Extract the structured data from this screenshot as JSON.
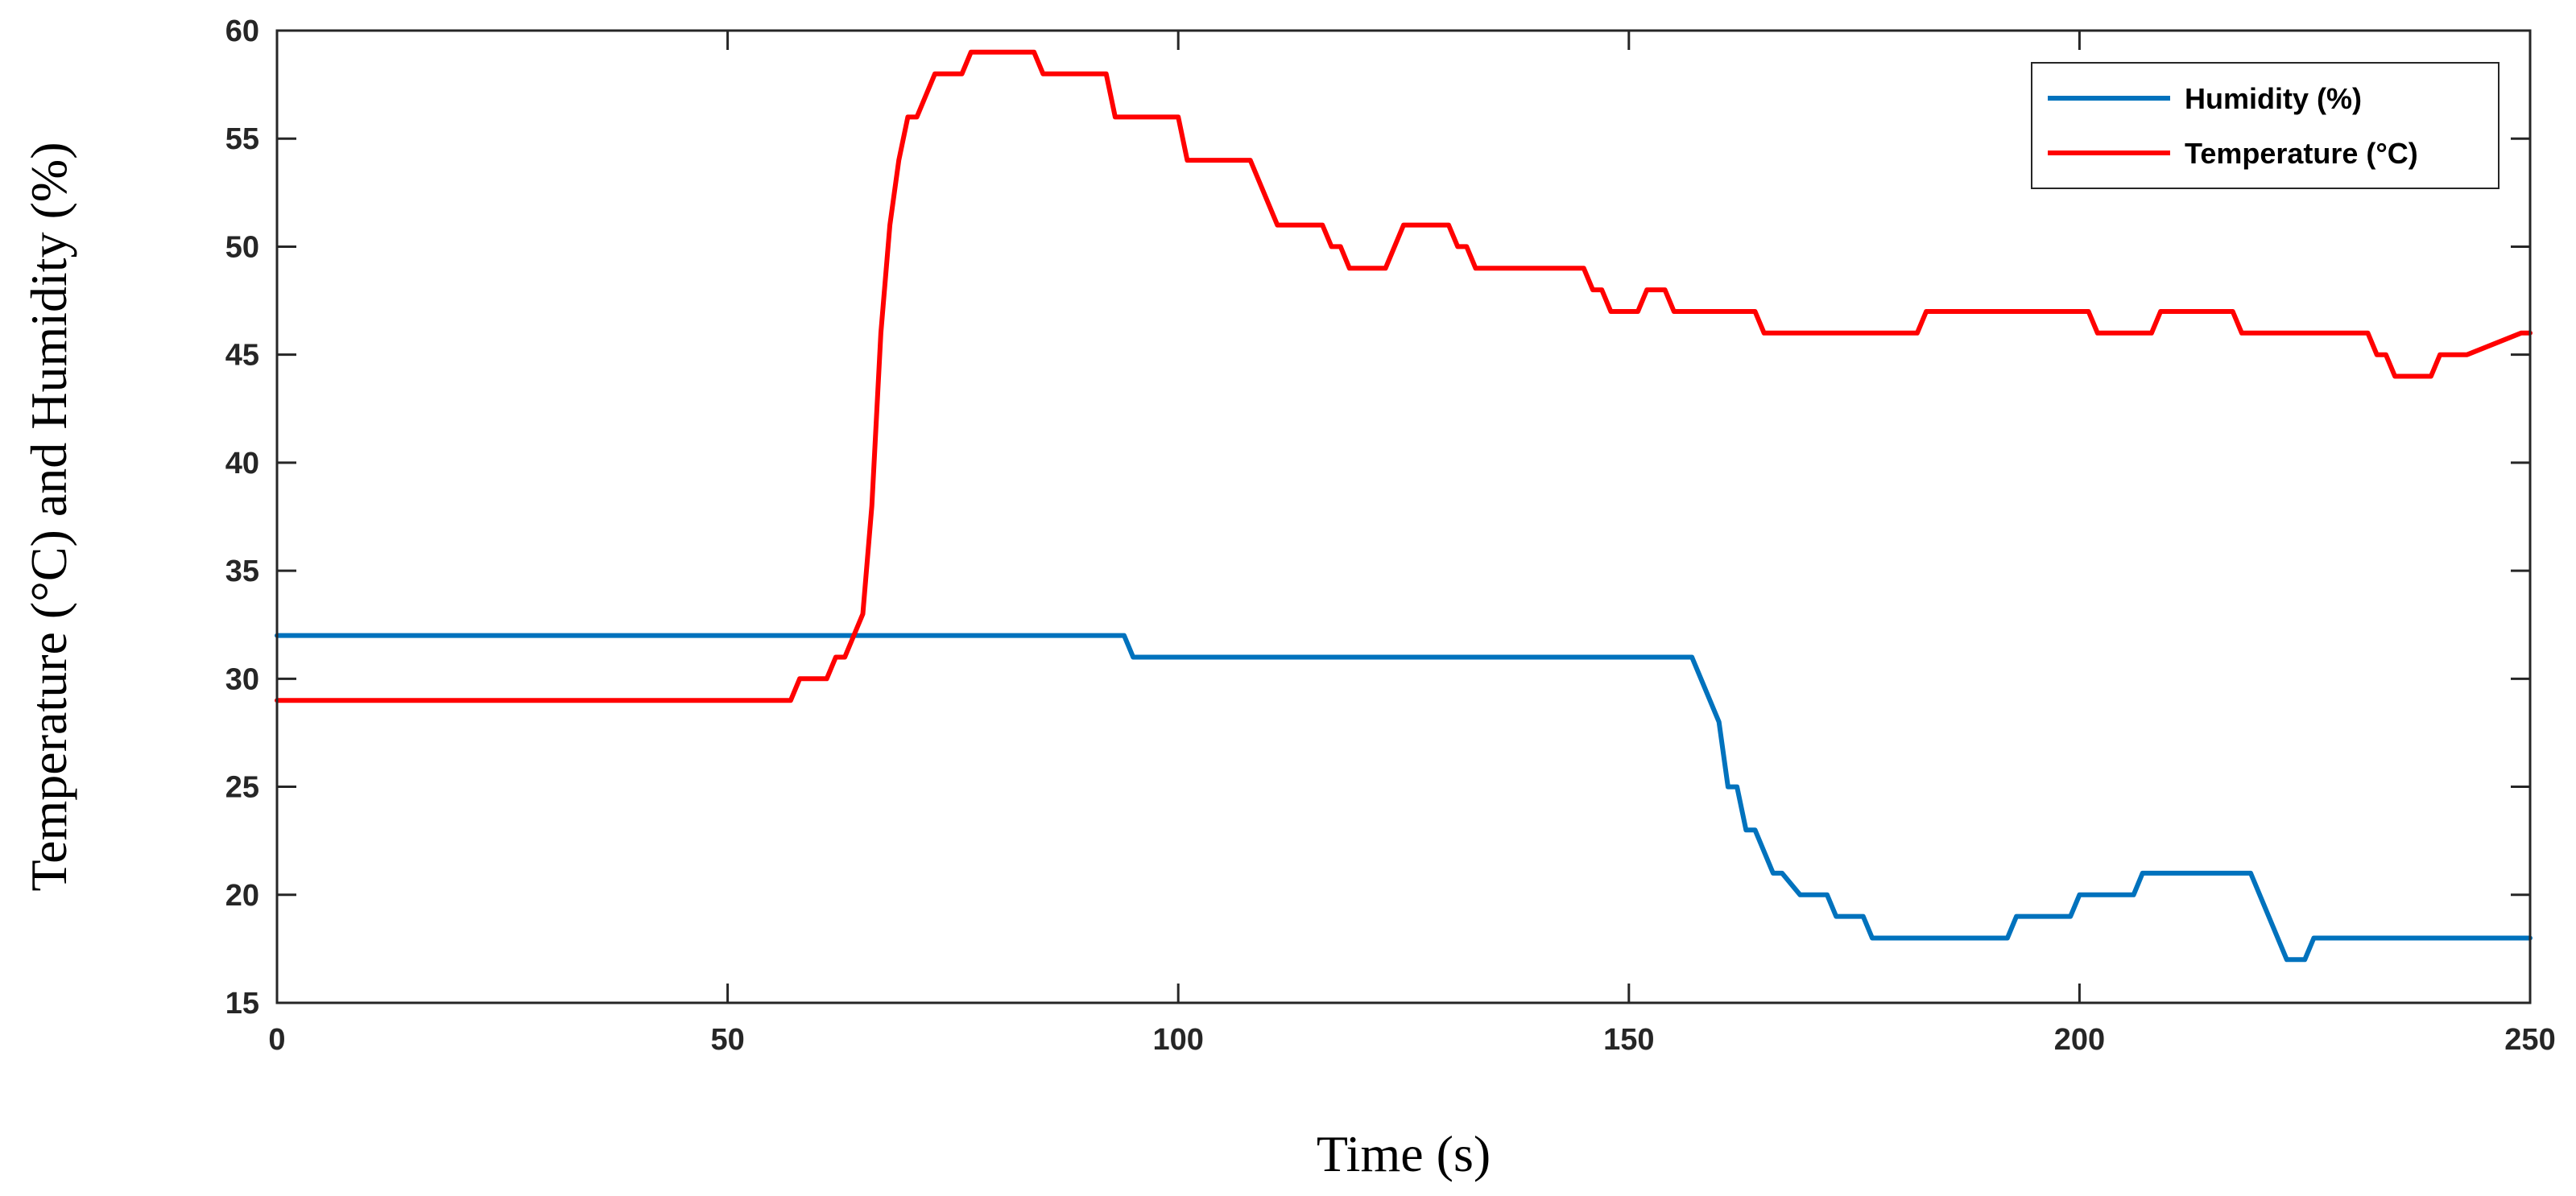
{
  "chart_data": {
    "type": "line",
    "title": "",
    "xlabel": "Time (s)",
    "ylabel": "Temperature (°C) and Humidity (%)",
    "xlim": [
      0,
      250
    ],
    "ylim": [
      15,
      60
    ],
    "xticks": [
      0,
      50,
      100,
      150,
      200,
      250
    ],
    "yticks": [
      15,
      20,
      25,
      30,
      35,
      40,
      45,
      50,
      55,
      60
    ],
    "grid": false,
    "legend_position": "top-right",
    "series": [
      {
        "name": "Humidity (%)",
        "color": "#0072BD",
        "x": [
          0,
          94,
          95,
          157,
          158,
          160,
          161,
          162,
          163,
          164,
          166,
          167,
          169,
          172,
          173,
          176,
          177,
          192,
          193,
          199,
          200,
          206,
          207,
          219,
          223,
          225,
          226,
          250
        ],
        "y": [
          32,
          32,
          31,
          31,
          30,
          28,
          25,
          25,
          23,
          23,
          21,
          21,
          20,
          20,
          19,
          19,
          18,
          18,
          19,
          19,
          20,
          20,
          21,
          21,
          17,
          17,
          18,
          18
        ]
      },
      {
        "name": "Temperature (°C)",
        "color": "#FF0000",
        "x": [
          0,
          57,
          58,
          61,
          62,
          63,
          64,
          65,
          66,
          67,
          68,
          69,
          70,
          71,
          72,
          73,
          76,
          77,
          84,
          85,
          92,
          93,
          100,
          101,
          108,
          111,
          116,
          117,
          118,
          119,
          123,
          125,
          130,
          131,
          132,
          133,
          145,
          146,
          147,
          148,
          151,
          152,
          154,
          155,
          157,
          164,
          165,
          182,
          183,
          201,
          202,
          208,
          209,
          217,
          218,
          232,
          233,
          234,
          235,
          239,
          240,
          242,
          243,
          249,
          250
        ],
        "y": [
          29,
          29,
          30,
          30,
          31,
          31,
          32,
          33,
          38,
          46,
          51,
          54,
          56,
          56,
          57,
          58,
          58,
          59,
          59,
          58,
          58,
          56,
          56,
          54,
          54,
          51,
          51,
          50,
          50,
          49,
          49,
          51,
          51,
          50,
          50,
          49,
          49,
          48,
          48,
          47,
          47,
          48,
          48,
          47,
          47,
          47,
          46,
          46,
          47,
          47,
          46,
          46,
          47,
          47,
          46,
          46,
          45,
          45,
          44,
          44,
          45,
          45,
          45,
          46,
          46
        ]
      }
    ]
  }
}
